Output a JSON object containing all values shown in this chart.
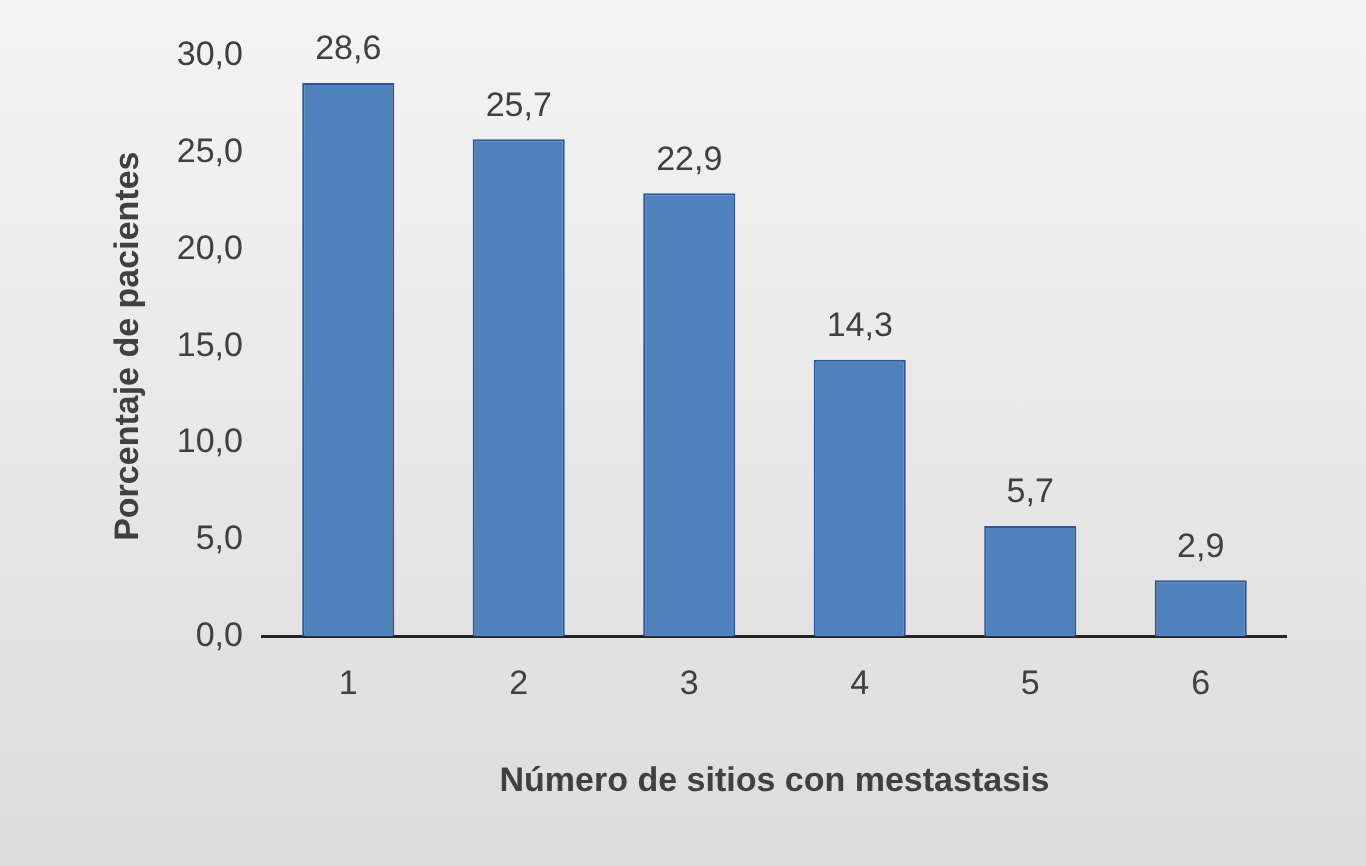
{
  "chart_data": {
    "type": "bar",
    "xlabel": "Número de sitios con mestastasis",
    "ylabel": "Porcentaje de pacientes",
    "categories": [
      "1",
      "2",
      "3",
      "4",
      "5",
      "6"
    ],
    "values": [
      28.6,
      25.7,
      22.9,
      14.3,
      5.7,
      2.9
    ],
    "value_labels": [
      "28,6",
      "25,7",
      "22,9",
      "14,3",
      "5,7",
      "2,9"
    ],
    "color": "#4f81bd",
    "ylim": [
      0,
      30
    ],
    "yticks": [
      {
        "value": 0,
        "label": "0,0"
      },
      {
        "value": 5,
        "label": "5,0"
      },
      {
        "value": 10,
        "label": "10,0"
      },
      {
        "value": 15,
        "label": "15,0"
      },
      {
        "value": 20,
        "label": "20,0"
      },
      {
        "value": 25,
        "label": "25,0"
      },
      {
        "value": 30,
        "label": "30,0"
      }
    ],
    "grid": false,
    "legend": false
  }
}
